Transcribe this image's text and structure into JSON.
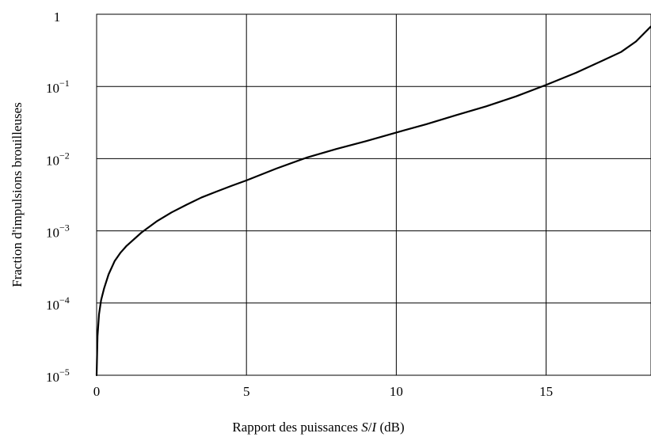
{
  "chart_data": {
    "type": "line",
    "title": "",
    "xlabel": {
      "prefix": "Rapport des puissances ",
      "var_s": "S",
      "slash": "/",
      "var_i": "I",
      "suffix": " (dB)"
    },
    "ylabel": "Fraction d'impulsions brouilleuses",
    "xlim": [
      0,
      18.5
    ],
    "ylim": [
      1e-05,
      1
    ],
    "yscale": "log",
    "grid": true,
    "xticks": [
      {
        "value": 0,
        "label": "0"
      },
      {
        "value": 5,
        "label": "5"
      },
      {
        "value": 10,
        "label": "10"
      },
      {
        "value": 15,
        "label": "15"
      }
    ],
    "yticks": [
      {
        "value": 1,
        "base": "1",
        "exp": ""
      },
      {
        "value": 0.1,
        "base": "10",
        "exp": "−1"
      },
      {
        "value": 0.01,
        "base": "10",
        "exp": "−2"
      },
      {
        "value": 0.001,
        "base": "10",
        "exp": "−3"
      },
      {
        "value": 0.0001,
        "base": "10",
        "exp": "−4"
      },
      {
        "value": 1e-05,
        "base": "10",
        "exp": "−5"
      }
    ],
    "series": [
      {
        "color": "#000000",
        "points": [
          [
            0.0,
            1e-05
          ],
          [
            0.03,
            3.5e-05
          ],
          [
            0.08,
            7e-05
          ],
          [
            0.15,
            0.00011
          ],
          [
            0.25,
            0.00016
          ],
          [
            0.4,
            0.00025
          ],
          [
            0.6,
            0.00038
          ],
          [
            0.8,
            0.0005
          ],
          [
            1.0,
            0.00062
          ],
          [
            1.5,
            0.00095
          ],
          [
            2.0,
            0.00135
          ],
          [
            2.5,
            0.0018
          ],
          [
            3.0,
            0.0023
          ],
          [
            3.5,
            0.0029
          ],
          [
            4.0,
            0.0035
          ],
          [
            4.5,
            0.0042
          ],
          [
            5.0,
            0.005
          ],
          [
            6.0,
            0.0073
          ],
          [
            7.0,
            0.0103
          ],
          [
            8.0,
            0.0136
          ],
          [
            9.0,
            0.0175
          ],
          [
            10.0,
            0.023
          ],
          [
            11.0,
            0.03
          ],
          [
            12.0,
            0.04
          ],
          [
            13.0,
            0.053
          ],
          [
            14.0,
            0.073
          ],
          [
            15.0,
            0.105
          ],
          [
            16.0,
            0.155
          ],
          [
            17.0,
            0.24
          ],
          [
            17.5,
            0.3
          ],
          [
            18.0,
            0.42
          ],
          [
            18.5,
            0.68
          ]
        ]
      }
    ]
  }
}
